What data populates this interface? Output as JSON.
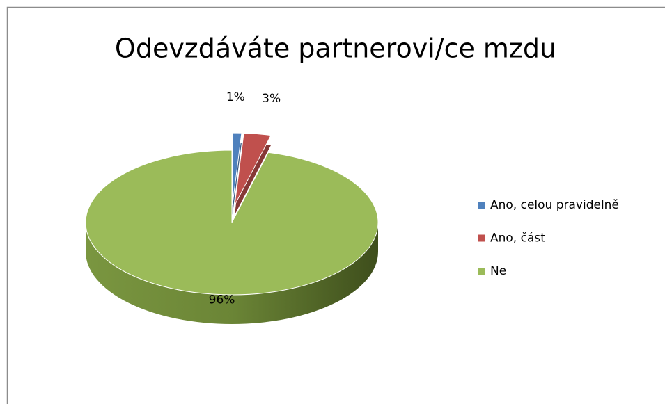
{
  "chart_data": {
    "type": "pie",
    "title": "Odevzdáváte partnerovi/ce mzdu",
    "categories": [
      "Ano, celou pravidelně",
      "Ano, část",
      "Ne"
    ],
    "values": [
      1,
      3,
      96
    ],
    "value_labels": [
      "1%",
      "3%",
      "96%"
    ],
    "colors": [
      "#4f81bd",
      "#c0504d",
      "#9bbb59"
    ],
    "legend": "right",
    "explode": [
      true,
      true,
      false
    ]
  }
}
